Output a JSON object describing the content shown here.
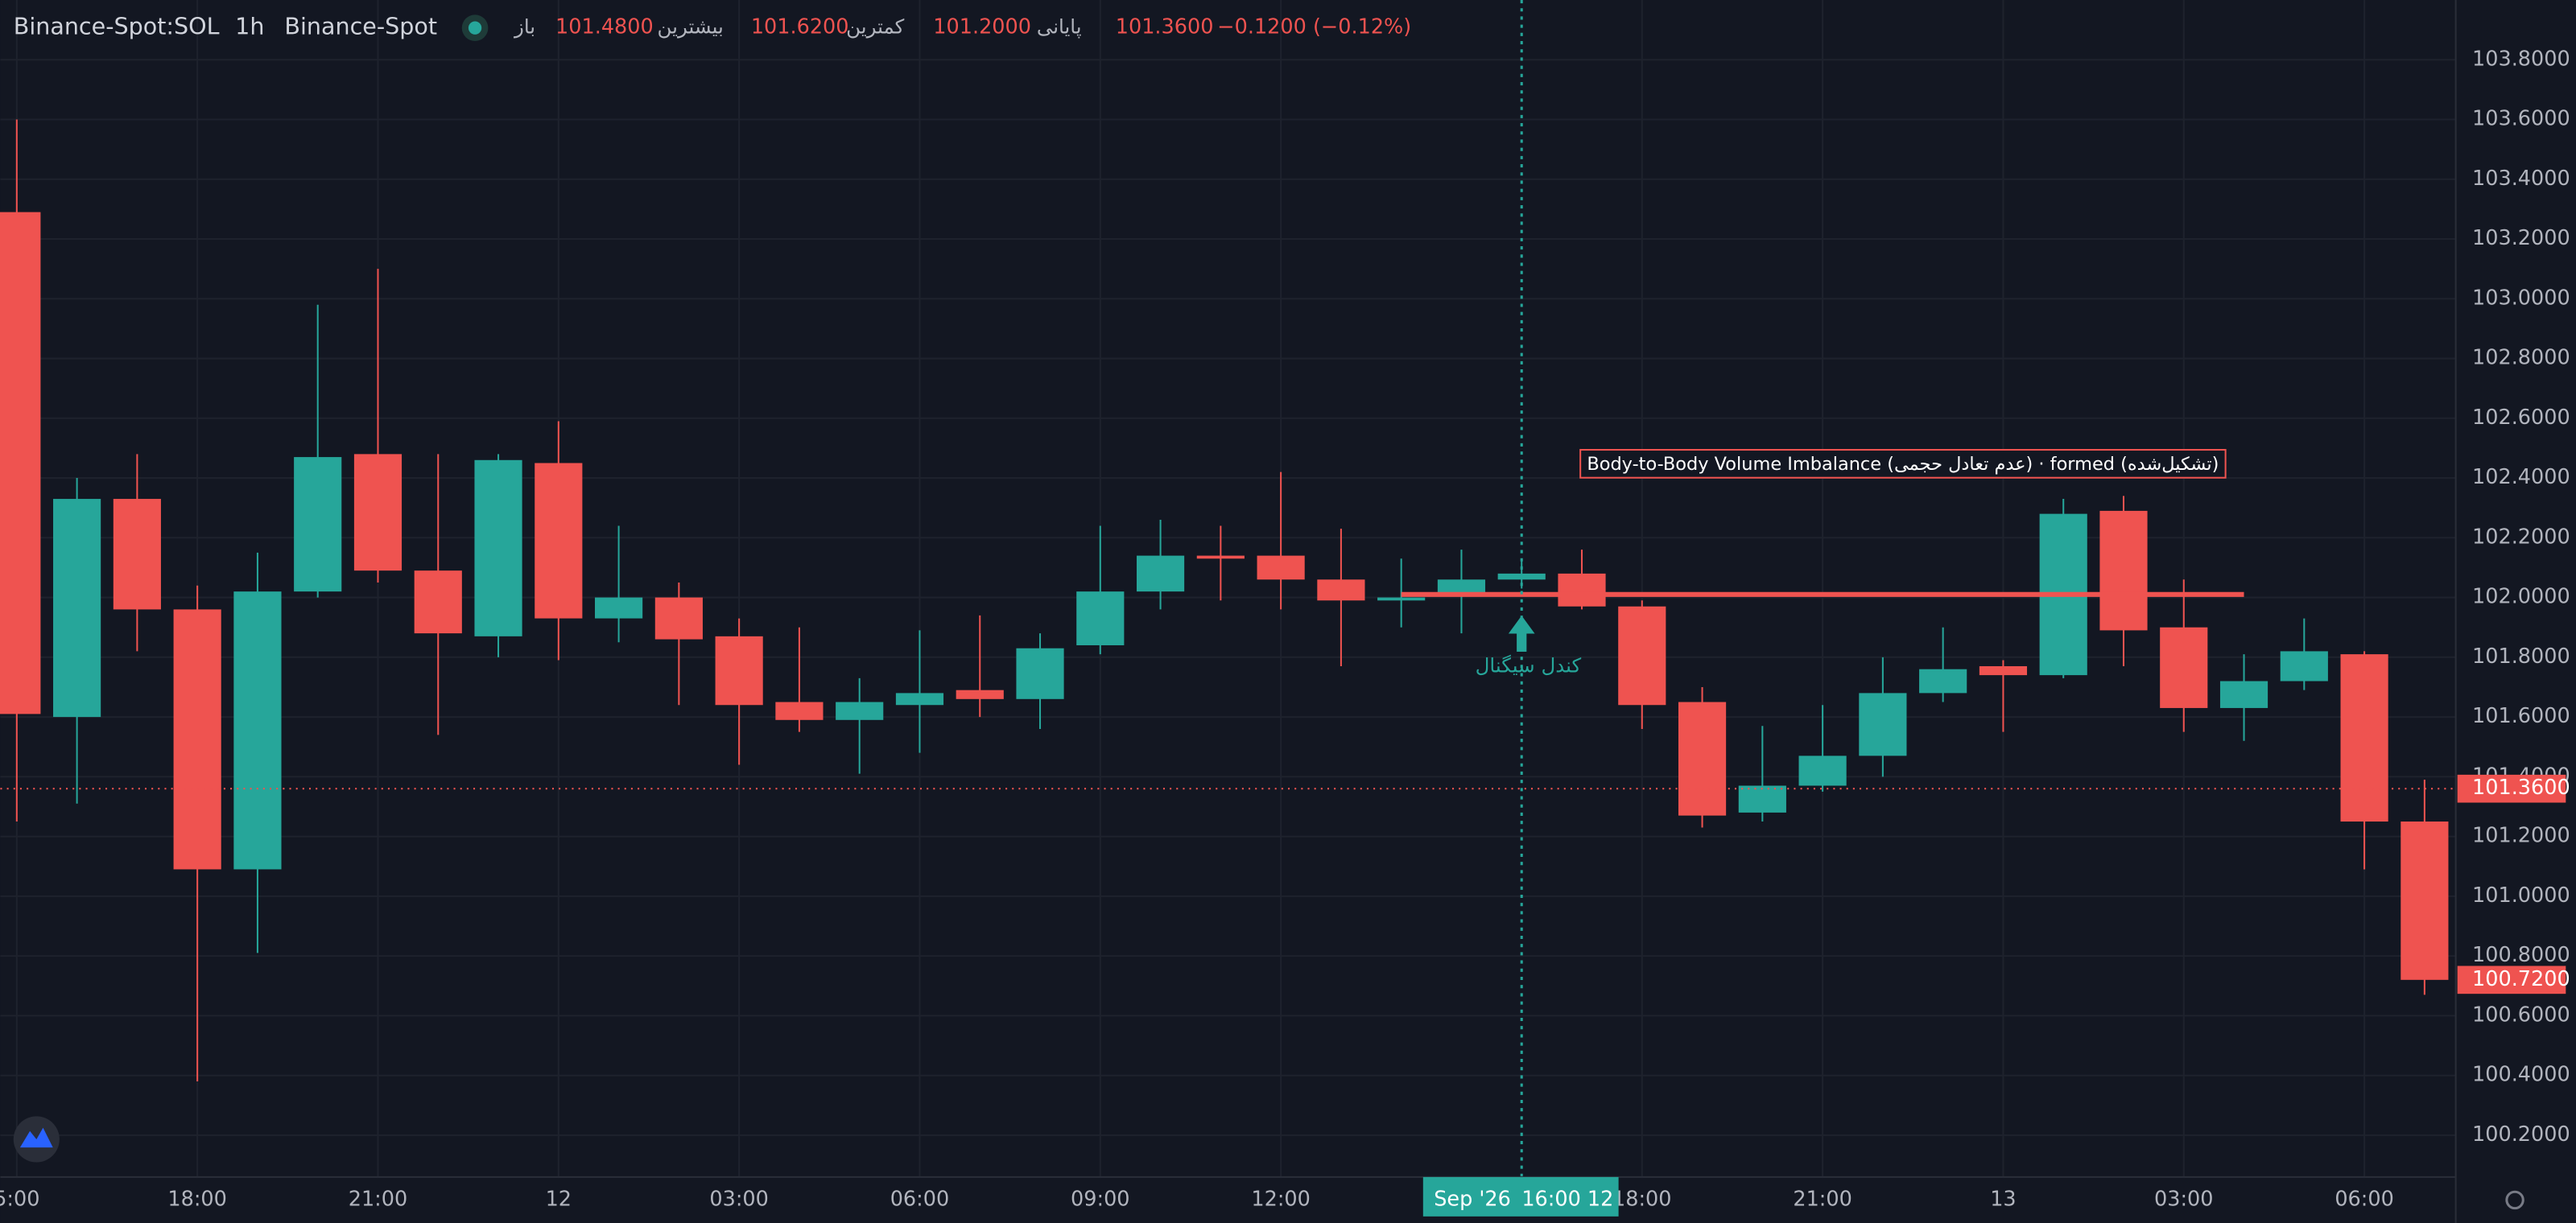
{
  "header": {
    "symbol": "Binance-Spot:SOL",
    "interval": "1h",
    "exchange": "Binance-Spot",
    "open_label": "باز",
    "open": "101.4800",
    "high_label": "بیشترین",
    "high": "101.6200",
    "low_label": "کمترین",
    "low": "101.2000",
    "close_label": "پایانی",
    "close": "101.3600",
    "change": "−0.1200 (−0.12%)"
  },
  "chart_data": {
    "type": "candlestick",
    "categories": [
      "5:00",
      null,
      null,
      "18:00",
      null,
      null,
      "21:00",
      null,
      null,
      "12",
      null,
      null,
      "03:00",
      null,
      null,
      "06:00",
      null,
      null,
      "09:00",
      null,
      null,
      "12:00",
      null,
      null,
      null,
      null,
      null,
      "18:00",
      null,
      null,
      "21:00",
      null,
      null,
      "13",
      null,
      null,
      "03:00",
      null,
      null,
      "06:00",
      null
    ],
    "open": [
      103.29,
      101.6,
      102.33,
      101.96,
      101.09,
      102.02,
      102.48,
      102.09,
      101.87,
      102.45,
      101.93,
      102.0,
      101.87,
      101.65,
      101.59,
      101.64,
      101.69,
      101.66,
      101.84,
      102.02,
      102.14,
      102.14,
      102.06,
      101.99,
      102.01,
      102.06,
      102.08,
      101.97,
      101.65,
      101.28,
      101.37,
      101.47,
      101.68,
      101.77,
      101.74,
      102.29,
      101.9,
      101.63,
      101.72,
      101.81,
      101.25
    ],
    "high": [
      103.6,
      102.4,
      102.48,
      102.04,
      102.15,
      102.98,
      103.1,
      102.48,
      102.48,
      102.59,
      102.24,
      102.05,
      101.93,
      101.9,
      101.73,
      101.89,
      101.94,
      101.88,
      102.24,
      102.26,
      102.24,
      102.42,
      102.23,
      102.13,
      102.16,
      102.13,
      102.16,
      101.99,
      101.7,
      101.57,
      101.64,
      101.8,
      101.9,
      101.79,
      102.33,
      102.34,
      102.06,
      101.81,
      101.93,
      101.82,
      101.39
    ],
    "low": [
      101.25,
      101.31,
      101.82,
      100.38,
      100.81,
      102.0,
      102.05,
      101.54,
      101.8,
      101.79,
      101.85,
      101.64,
      101.44,
      101.55,
      101.41,
      101.48,
      101.6,
      101.56,
      101.81,
      101.96,
      101.99,
      101.96,
      101.77,
      101.9,
      101.88,
      102.03,
      101.96,
      101.56,
      101.23,
      101.25,
      101.35,
      101.4,
      101.65,
      101.55,
      101.73,
      101.77,
      101.55,
      101.52,
      101.69,
      101.09,
      100.67
    ],
    "close": [
      101.61,
      102.33,
      101.96,
      101.09,
      102.02,
      102.47,
      102.09,
      101.88,
      102.46,
      101.93,
      102.0,
      101.86,
      101.64,
      101.59,
      101.65,
      101.68,
      101.66,
      101.83,
      102.02,
      102.14,
      102.13,
      102.06,
      101.99,
      102.0,
      102.06,
      102.08,
      101.97,
      101.64,
      101.27,
      101.37,
      101.47,
      101.68,
      101.76,
      101.74,
      102.28,
      101.89,
      101.63,
      101.72,
      101.82,
      101.25,
      100.72
    ],
    "up_color": "#26a69a",
    "down_color": "#ef5350",
    "ylim": [
      100.06,
      104.0
    ],
    "yticks": [
      {
        "value": 100.2,
        "label": "100.2000"
      },
      {
        "value": 100.4,
        "label": "100.4000"
      },
      {
        "value": 100.6,
        "label": "100.6000"
      },
      {
        "value": 100.8,
        "label": "100.8000"
      },
      {
        "value": 101.0,
        "label": "101.0000"
      },
      {
        "value": 101.2,
        "label": "101.2000"
      },
      {
        "value": 101.4,
        "label": "101.4000"
      },
      {
        "value": 101.6,
        "label": "101.6000"
      },
      {
        "value": 101.8,
        "label": "101.8000"
      },
      {
        "value": 102.0,
        "label": "102.0000"
      },
      {
        "value": 102.2,
        "label": "102.2000"
      },
      {
        "value": 102.4,
        "label": "102.4000"
      },
      {
        "value": 102.6,
        "label": "102.6000"
      },
      {
        "value": 102.8,
        "label": "102.8000"
      },
      {
        "value": 103.0,
        "label": "103.0000"
      },
      {
        "value": 103.2,
        "label": "103.2000"
      },
      {
        "value": 103.4,
        "label": "103.4000"
      },
      {
        "value": 103.6,
        "label": "103.6000"
      },
      {
        "value": 103.8,
        "label": "103.8000"
      }
    ],
    "grid": true,
    "last_price": {
      "value": 101.36,
      "label": "101.3600"
    },
    "close_price": {
      "value": 100.72,
      "label": "100.7200"
    },
    "imbalance": {
      "label": "Body-to-Body Volume Imbalance (عدم تعادل حجمی) · formed (تشکیل‌شده)",
      "value": 102.01,
      "start_index": 23,
      "end_index": 37
    },
    "signal": {
      "label": "کندل سیگنال",
      "index": 25
    },
    "crosshair": {
      "index": 25,
      "date": "Sep '26",
      "time": "16:00 12"
    }
  }
}
